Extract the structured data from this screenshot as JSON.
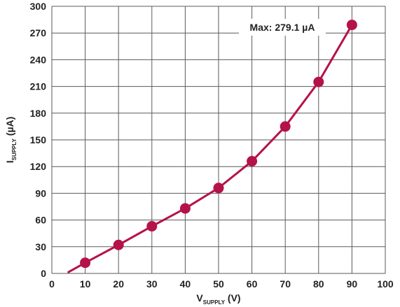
{
  "chart_data": {
    "type": "line",
    "xlabel": {
      "main": "V",
      "sub": "SUPPLY",
      "unit": " (V)"
    },
    "ylabel": {
      "main": "I",
      "sub": "SUPPLY",
      "unit": " (µA)"
    },
    "xlim": [
      0,
      100
    ],
    "ylim": [
      0,
      300
    ],
    "xticks": [
      0,
      10,
      20,
      30,
      40,
      50,
      60,
      70,
      80,
      90,
      100
    ],
    "yticks": [
      0,
      30,
      60,
      90,
      120,
      150,
      180,
      210,
      240,
      270,
      300
    ],
    "grid": true,
    "series": [
      {
        "color": "#b5124a",
        "line": {
          "x": [
            5,
            10,
            20,
            30,
            40,
            50,
            60,
            70,
            80,
            90
          ],
          "y": [
            1.5,
            12,
            32,
            53,
            73,
            96,
            126,
            165,
            215,
            279.1
          ]
        },
        "markers": {
          "x": [
            10,
            20,
            30,
            40,
            50,
            60,
            70,
            80,
            90
          ],
          "y": [
            12,
            32,
            53,
            73,
            96,
            126,
            165,
            215,
            279.1
          ]
        }
      }
    ],
    "annotation": {
      "text": "Max: 279.1 µA"
    }
  }
}
